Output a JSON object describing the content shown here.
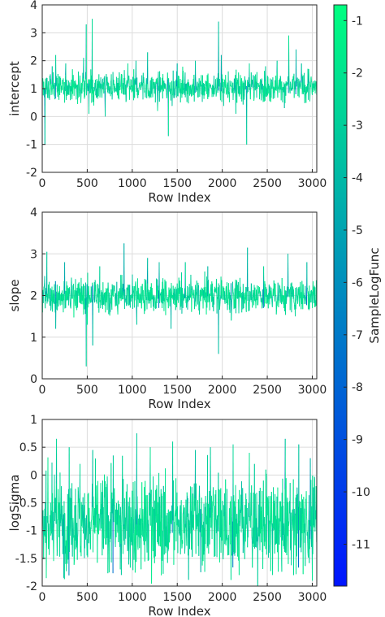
{
  "chart_data": [
    {
      "type": "line",
      "xlabel": "Row Index",
      "ylabel": "intercept",
      "xlim": [
        0,
        3050
      ],
      "ylim": [
        -2,
        4
      ],
      "xticks": [
        0,
        500,
        1000,
        1500,
        2000,
        2500,
        3000
      ],
      "yticks": [
        -2,
        -1,
        0,
        1,
        2,
        3,
        4
      ],
      "grid": true,
      "series": {
        "n": 3050,
        "center": 1.05,
        "spread": 0.26,
        "spikes": [
          {
            "x": 30,
            "y": -1.0
          },
          {
            "x": 110,
            "y": 1.8
          },
          {
            "x": 150,
            "y": 2.2
          },
          {
            "x": 260,
            "y": 1.9
          },
          {
            "x": 460,
            "y": 2.1
          },
          {
            "x": 490,
            "y": 3.3
          },
          {
            "x": 520,
            "y": 0.1
          },
          {
            "x": 555,
            "y": 3.5
          },
          {
            "x": 700,
            "y": 0.0
          },
          {
            "x": 950,
            "y": 1.9
          },
          {
            "x": 1040,
            "y": 2.0
          },
          {
            "x": 1170,
            "y": 2.3
          },
          {
            "x": 1280,
            "y": 0.2
          },
          {
            "x": 1400,
            "y": -0.7
          },
          {
            "x": 1500,
            "y": 1.9
          },
          {
            "x": 1700,
            "y": 2.0
          },
          {
            "x": 1960,
            "y": 3.4
          },
          {
            "x": 1990,
            "y": 2.2
          },
          {
            "x": 2150,
            "y": 0.1
          },
          {
            "x": 2270,
            "y": -1.0
          },
          {
            "x": 2300,
            "y": 1.9
          },
          {
            "x": 2480,
            "y": 1.8
          },
          {
            "x": 2610,
            "y": 2.0
          },
          {
            "x": 2740,
            "y": 2.9
          },
          {
            "x": 2820,
            "y": 2.4
          },
          {
            "x": 2880,
            "y": 1.9
          },
          {
            "x": 2960,
            "y": 1.7
          }
        ]
      }
    },
    {
      "type": "line",
      "xlabel": "Row Index",
      "ylabel": "slope",
      "xlim": [
        0,
        3050
      ],
      "ylim": [
        0,
        4
      ],
      "xticks": [
        0,
        500,
        1000,
        1500,
        2000,
        2500,
        3000
      ],
      "yticks": [
        0,
        1,
        2,
        3,
        4
      ],
      "grid": true,
      "series": {
        "n": 3050,
        "center": 2.0,
        "spread": 0.2,
        "spikes": [
          {
            "x": 50,
            "y": 3.05
          },
          {
            "x": 150,
            "y": 1.2
          },
          {
            "x": 250,
            "y": 2.8
          },
          {
            "x": 490,
            "y": 0.3
          },
          {
            "x": 500,
            "y": 1.3
          },
          {
            "x": 560,
            "y": 0.8
          },
          {
            "x": 640,
            "y": 2.7
          },
          {
            "x": 910,
            "y": 3.25
          },
          {
            "x": 1050,
            "y": 1.3
          },
          {
            "x": 1170,
            "y": 2.9
          },
          {
            "x": 1300,
            "y": 2.8
          },
          {
            "x": 1430,
            "y": 1.2
          },
          {
            "x": 1590,
            "y": 2.8
          },
          {
            "x": 1840,
            "y": 2.7
          },
          {
            "x": 1960,
            "y": 0.6
          },
          {
            "x": 2100,
            "y": 1.4
          },
          {
            "x": 2280,
            "y": 3.15
          },
          {
            "x": 2460,
            "y": 2.7
          },
          {
            "x": 2730,
            "y": 3.0
          },
          {
            "x": 2940,
            "y": 2.8
          }
        ]
      }
    },
    {
      "type": "line",
      "xlabel": "Row Index",
      "ylabel": "logSigma",
      "xlim": [
        0,
        3050
      ],
      "ylim": [
        -2,
        1
      ],
      "xticks": [
        0,
        500,
        1000,
        1500,
        2000,
        2500,
        3000
      ],
      "yticks": [
        -2,
        -1.5,
        -1,
        -0.5,
        0,
        0.5,
        1
      ],
      "grid": true,
      "series": {
        "n": 3050,
        "center": -0.85,
        "spread": 0.42,
        "spikes": [
          {
            "x": 160,
            "y": 0.65
          },
          {
            "x": 300,
            "y": 0.5
          },
          {
            "x": 420,
            "y": 0.2
          },
          {
            "x": 560,
            "y": 0.45
          },
          {
            "x": 790,
            "y": 0.35
          },
          {
            "x": 1050,
            "y": 0.75
          },
          {
            "x": 1200,
            "y": 0.5
          },
          {
            "x": 1450,
            "y": 0.6
          },
          {
            "x": 1700,
            "y": 0.45
          },
          {
            "x": 1870,
            "y": 0.5
          },
          {
            "x": 2120,
            "y": 0.55
          },
          {
            "x": 2300,
            "y": 0.4
          },
          {
            "x": 2700,
            "y": 0.65
          },
          {
            "x": 2850,
            "y": 0.55
          },
          {
            "x": 2980,
            "y": 0.3
          },
          {
            "x": 240,
            "y": -1.85
          },
          {
            "x": 880,
            "y": -1.8
          },
          {
            "x": 1760,
            "y": -1.75
          },
          {
            "x": 2560,
            "y": -1.8
          },
          {
            "x": 3000,
            "y": -1.9
          }
        ]
      }
    },
    {
      "type": "colorbar",
      "label": "SampleLogFunc",
      "range": [
        -11.8,
        -0.7
      ],
      "ticks": [
        -1,
        -2,
        -3,
        -4,
        -5,
        -6,
        -7,
        -8,
        -9,
        -10,
        -11
      ],
      "color_low": "#0014ff",
      "color_high": "#00ff80"
    }
  ],
  "colors": {
    "axis": "#262626",
    "grid": "#dcdcdc",
    "background": "#ffffff"
  }
}
